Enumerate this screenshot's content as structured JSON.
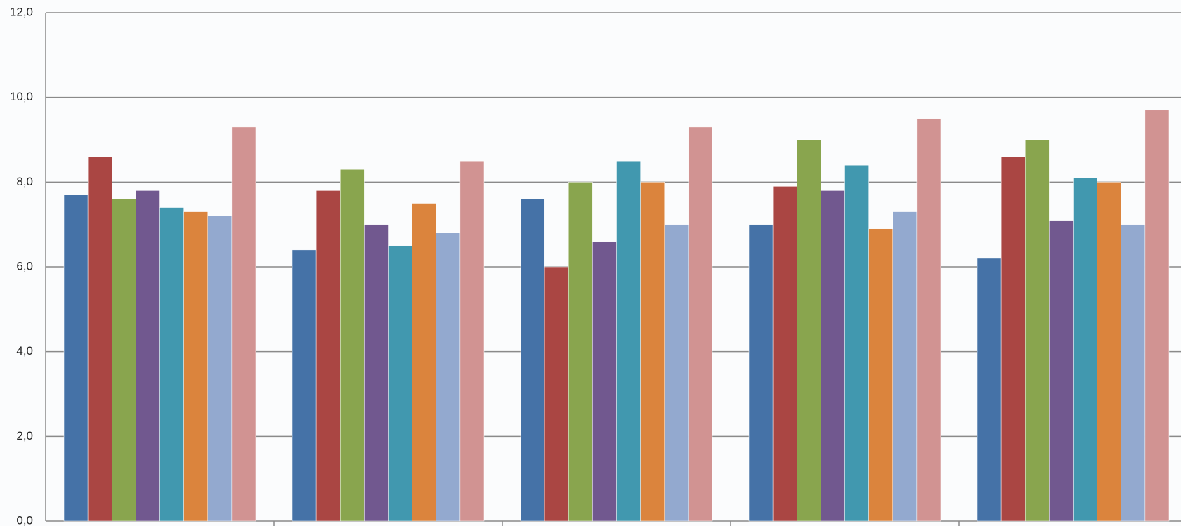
{
  "chart_data": {
    "type": "bar",
    "categories": [
      null,
      null,
      null,
      null,
      null
    ],
    "series": [
      {
        "color": "#4572a7",
        "values": [
          7.7,
          6.4,
          7.6,
          7.0,
          6.2
        ]
      },
      {
        "color": "#aa4643",
        "values": [
          8.6,
          7.8,
          6.0,
          7.9,
          8.6
        ]
      },
      {
        "color": "#89a54e",
        "values": [
          7.6,
          8.3,
          8.0,
          9.0,
          9.0
        ]
      },
      {
        "color": "#71588f",
        "values": [
          7.8,
          7.0,
          6.6,
          7.8,
          7.1
        ]
      },
      {
        "color": "#4198af",
        "values": [
          7.4,
          6.5,
          8.5,
          8.4,
          8.1
        ]
      },
      {
        "color": "#db843d",
        "values": [
          7.3,
          7.5,
          8.0,
          6.9,
          8.0
        ]
      },
      {
        "color": "#93a9cf",
        "values": [
          7.2,
          6.8,
          7.0,
          7.3,
          7.0
        ]
      },
      {
        "color": "#d19392",
        "values": [
          9.3,
          8.5,
          9.3,
          9.5,
          9.7
        ]
      }
    ],
    "ylim": [
      0,
      12
    ],
    "yticks": [
      {
        "value": 0,
        "label": "0,0"
      },
      {
        "value": 2,
        "label": "2,0"
      },
      {
        "value": 4,
        "label": "4,0"
      },
      {
        "value": 6,
        "label": "6,0"
      },
      {
        "value": 8,
        "label": "8,0"
      },
      {
        "value": 10,
        "label": "10,0"
      },
      {
        "value": 12,
        "label": "12,0"
      }
    ],
    "grid": true
  }
}
